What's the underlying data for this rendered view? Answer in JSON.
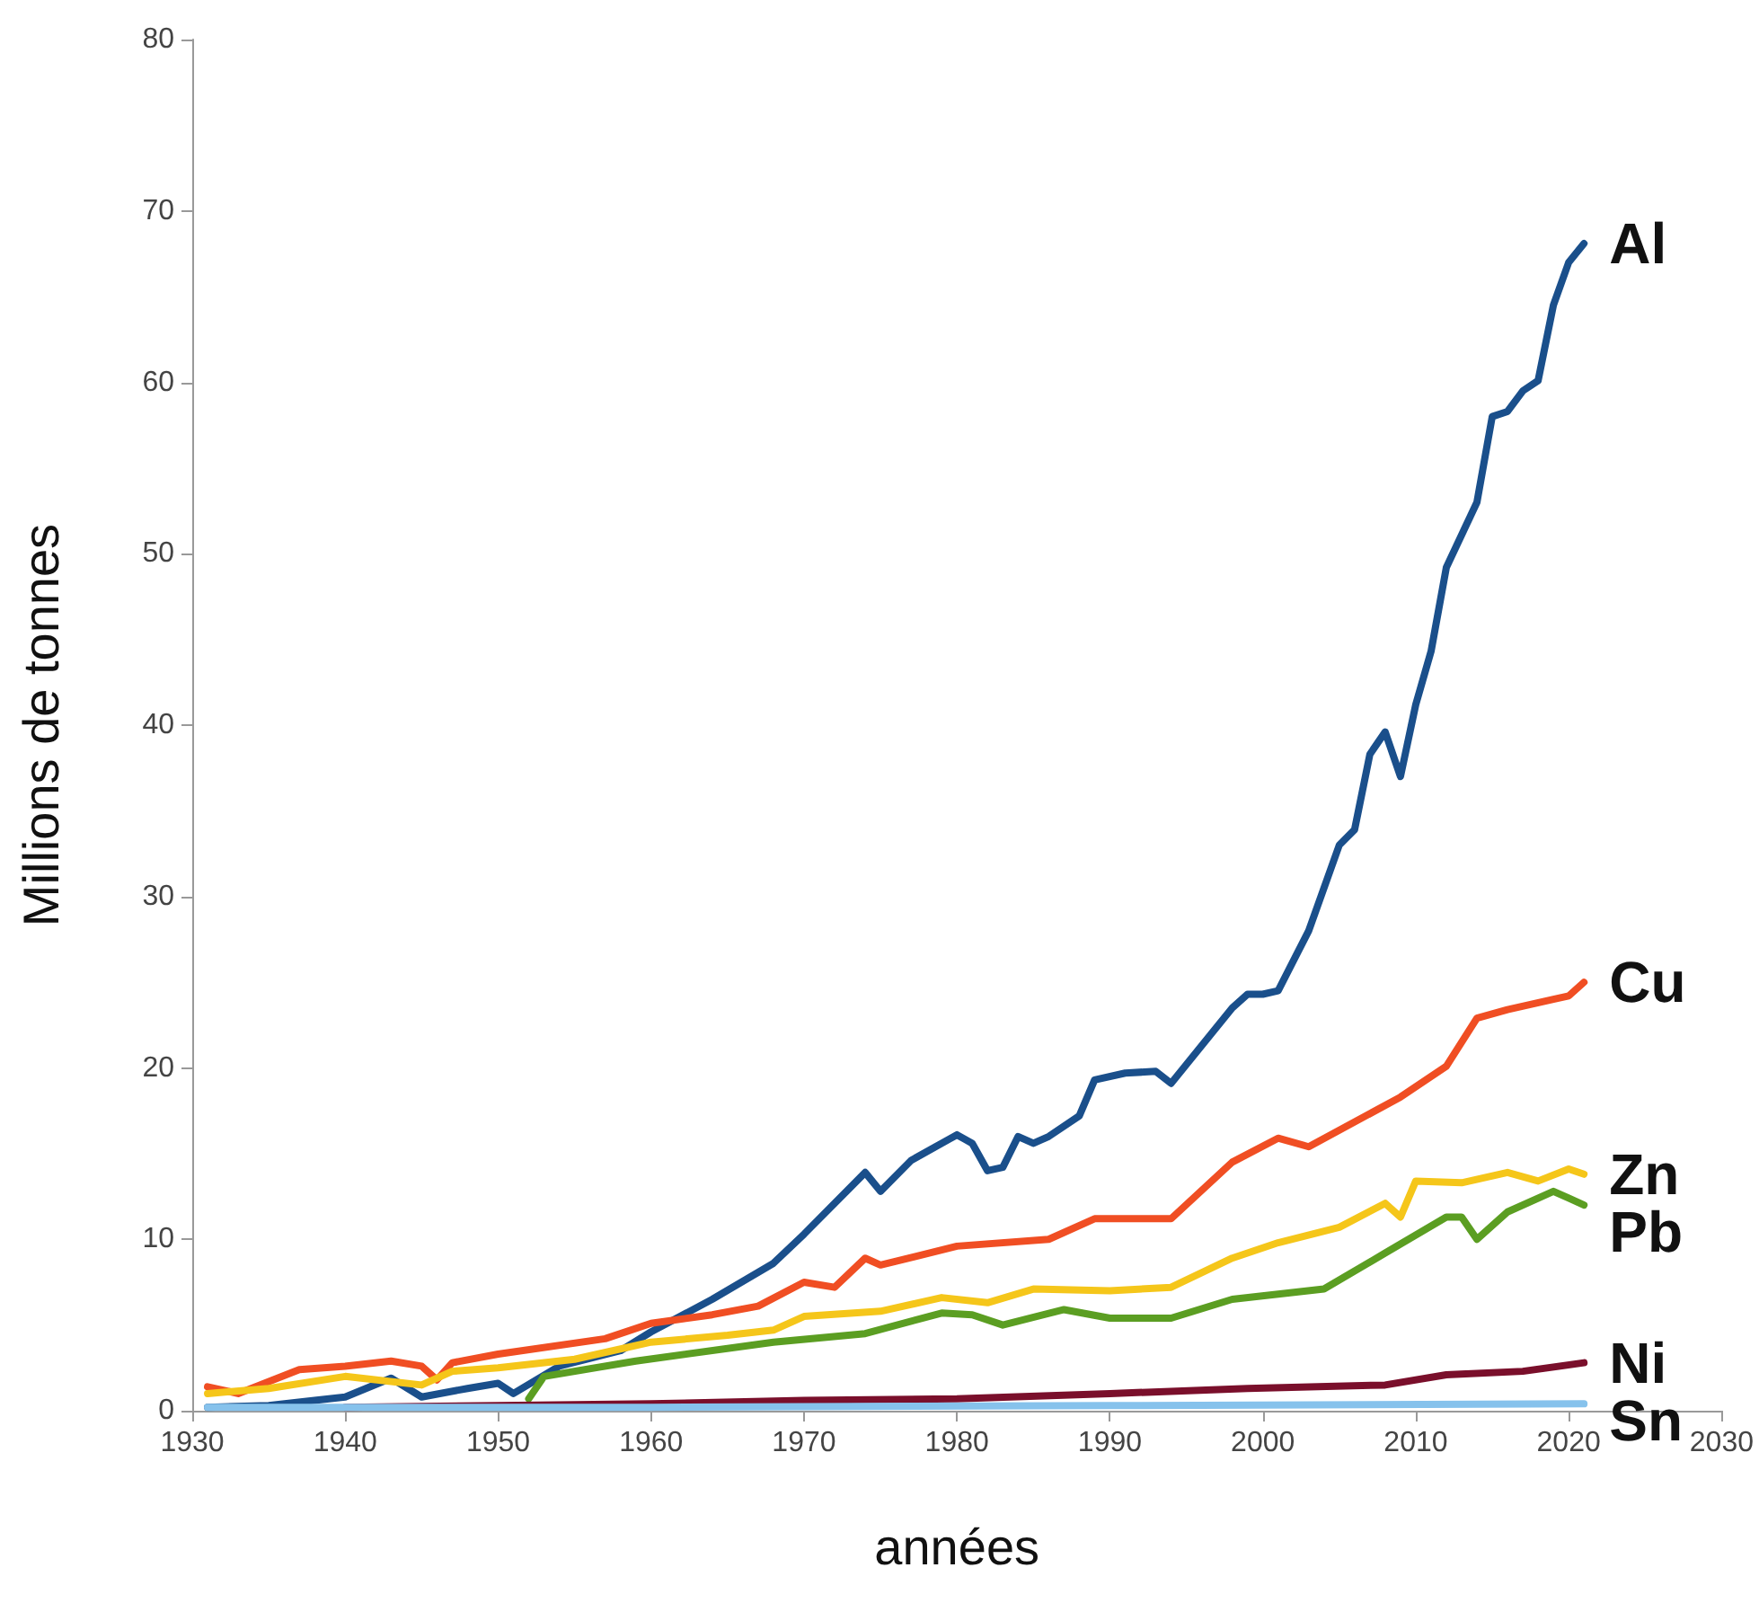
{
  "chart_data": {
    "type": "line",
    "xlabel": "années",
    "ylabel": "Millions de tonnes",
    "xlim": [
      1930,
      2030
    ],
    "xticks": [
      1930,
      1940,
      1950,
      1960,
      1970,
      1980,
      1990,
      2000,
      2010,
      2020,
      2030
    ],
    "ylim": [
      0,
      80
    ],
    "yticks": [
      0,
      10,
      20,
      30,
      40,
      50,
      60,
      70,
      80
    ],
    "grid": false,
    "legend": false,
    "marker": "none",
    "line_style": "solid",
    "series": [
      {
        "name": "Al",
        "color": "#1a4f8b",
        "x": [
          1931,
          1935,
          1938,
          1940,
          1943,
          1945,
          1948,
          1950,
          1951,
          1954,
          1958,
          1960,
          1964,
          1968,
          1970,
          1974,
          1975,
          1977,
          1980,
          1981,
          1982,
          1983,
          1984,
          1985,
          1986,
          1988,
          1989,
          1991,
          1993,
          1994,
          1995,
          1998,
          1999,
          2000,
          2001,
          2003,
          2005,
          2006,
          2007,
          2008,
          2009,
          2010,
          2011,
          2012,
          2014,
          2015,
          2016,
          2017,
          2018,
          2019,
          2020,
          2021
        ],
        "values": [
          0.2,
          0.3,
          0.6,
          0.8,
          1.9,
          0.8,
          1.3,
          1.6,
          1.0,
          2.6,
          3.5,
          4.6,
          6.5,
          8.6,
          10.3,
          13.9,
          12.8,
          14.6,
          16.1,
          15.6,
          14.0,
          14.2,
          16.0,
          15.6,
          16.0,
          17.2,
          19.3,
          19.7,
          19.8,
          19.1,
          20.2,
          23.5,
          24.3,
          24.3,
          24.5,
          28.0,
          33.0,
          33.9,
          38.3,
          39.6,
          37.0,
          41.2,
          44.3,
          49.2,
          53.0,
          58.0,
          58.3,
          59.5,
          60.1,
          64.5,
          67.0,
          68.1
        ]
      },
      {
        "name": "Cu",
        "color": "#f04e23",
        "x": [
          1931,
          1933,
          1937,
          1940,
          1943,
          1945,
          1946,
          1947,
          1950,
          1957,
          1960,
          1964,
          1967,
          1970,
          1972,
          1974,
          1975,
          1980,
          1986,
          1989,
          1994,
          1998,
          2001,
          2003,
          2009,
          2012,
          2014,
          2016,
          2019,
          2020,
          2021
        ],
        "values": [
          1.4,
          1.0,
          2.4,
          2.6,
          2.9,
          2.6,
          1.8,
          2.8,
          3.3,
          4.2,
          5.1,
          5.6,
          6.1,
          7.5,
          7.2,
          8.9,
          8.5,
          9.6,
          10.0,
          11.2,
          11.2,
          14.5,
          15.9,
          15.4,
          18.3,
          20.1,
          22.9,
          23.4,
          24.0,
          24.2,
          25.0
        ]
      },
      {
        "name": "Zn",
        "color": "#f5c61a",
        "x": [
          1931,
          1935,
          1940,
          1945,
          1947,
          1950,
          1955,
          1960,
          1965,
          1968,
          1970,
          1975,
          1979,
          1982,
          1985,
          1990,
          1994,
          1998,
          2001,
          2005,
          2008,
          2009,
          2010,
          2013,
          2016,
          2018,
          2020,
          2021
        ],
        "values": [
          1.0,
          1.3,
          2.0,
          1.5,
          2.3,
          2.5,
          3.0,
          4.0,
          4.4,
          4.7,
          5.5,
          5.8,
          6.6,
          6.3,
          7.1,
          7.0,
          7.2,
          8.9,
          9.8,
          10.7,
          12.1,
          11.3,
          13.4,
          13.3,
          13.9,
          13.4,
          14.1,
          13.8
        ]
      },
      {
        "name": "Pb",
        "color": "#5b9e22",
        "x": [
          1952,
          1953,
          1959,
          1968,
          1974,
          1979,
          1981,
          1983,
          1987,
          1990,
          1994,
          1998,
          2004,
          2008,
          2012,
          2013,
          2014,
          2016,
          2019,
          2020,
          2021
        ],
        "values": [
          0.7,
          2.0,
          2.9,
          4.0,
          4.5,
          5.7,
          5.6,
          5.0,
          5.9,
          5.4,
          5.4,
          6.5,
          7.1,
          9.2,
          11.3,
          11.3,
          10.0,
          11.6,
          12.8,
          12.4,
          12.0
        ]
      },
      {
        "name": "Ni",
        "color": "#7a0f2b",
        "x": [
          1940,
          1950,
          1960,
          1970,
          1980,
          1990,
          1999,
          2008,
          2012,
          2017,
          2021
        ],
        "values": [
          0.2,
          0.3,
          0.4,
          0.6,
          0.7,
          1.0,
          1.3,
          1.5,
          2.1,
          2.3,
          2.8
        ]
      },
      {
        "name": "Sn",
        "color": "#86c2ec",
        "x": [
          1931,
          1960,
          1990,
          2021
        ],
        "values": [
          0.2,
          0.2,
          0.3,
          0.4
        ]
      }
    ]
  }
}
